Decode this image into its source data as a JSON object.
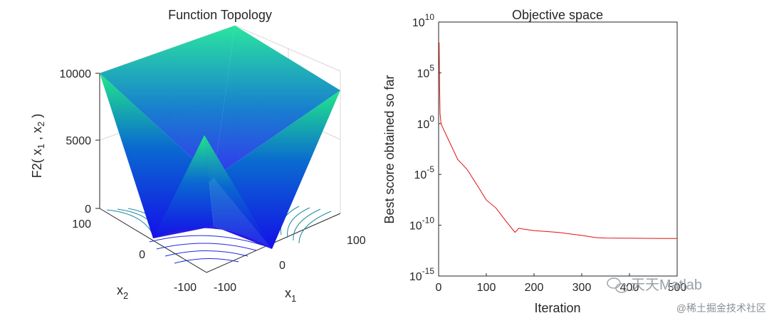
{
  "left_panel": {
    "title": "Function Topology",
    "z_ticks": [
      "10000",
      "5000",
      "0"
    ],
    "x1_ticks": [
      "-100",
      "0",
      "100"
    ],
    "x2_ticks": [
      "100",
      "0",
      "-100"
    ],
    "z_label_prefix": "F2( x",
    "z_label_sub1": "1",
    "z_label_mid": " , x",
    "z_label_sub2": "2",
    "z_label_suffix": " )",
    "x1_label": "x",
    "x1_sub": "1",
    "x2_label": "x",
    "x2_sub": "2",
    "colors": {
      "surface_low": "#1a14e6",
      "surface_mid": "#0a66c8",
      "surface_high": "#1fe08a",
      "contour": "#1a8a9a"
    }
  },
  "watermark": {
    "main": "天天Matlab",
    "sub": "@稀土掘金技术社区"
  },
  "chart_data": [
    {
      "type": "surface",
      "title": "Function Topology",
      "zlabel": "F2( x1 , x2 )",
      "xlabel": "x1",
      "ylabel": "x2",
      "xlim": [
        -100,
        100
      ],
      "ylim": [
        -100,
        100
      ],
      "zlim": [
        0,
        10000
      ],
      "z_max": 10000
    },
    {
      "type": "line",
      "title": "Objective space",
      "xlabel": "Iteration",
      "ylabel": "Best score obtained so far",
      "xlim": [
        0,
        500
      ],
      "ylim": [
        1e-15,
        10000000000.0
      ],
      "y_scale": "log",
      "x_ticks": [
        "0",
        "100",
        "200",
        "300",
        "400",
        "500"
      ],
      "y_ticks": [
        {
          "base": "10",
          "exp": "10"
        },
        {
          "base": "10",
          "exp": "5"
        },
        {
          "base": "10",
          "exp": "0"
        },
        {
          "base": "10",
          "exp": "-5"
        },
        {
          "base": "10",
          "exp": "-10"
        },
        {
          "base": "10",
          "exp": "-15"
        }
      ],
      "line_color": "#e01010",
      "series": [
        {
          "x": [
            1,
            2,
            3,
            5,
            10,
            20,
            40,
            60,
            80,
            100,
            120,
            140,
            160,
            168,
            180,
            200,
            250,
            300,
            330,
            350,
            400,
            450,
            500
          ],
          "y": [
            100000000.0,
            10000.0,
            10.0,
            1.0,
            0.3,
            0.03,
            0.0003,
            3e-05,
            1e-06,
            3e-08,
            5e-09,
            3e-10,
            2e-11,
            5e-11,
            4e-11,
            3e-11,
            2e-11,
            1e-11,
            6e-12,
            5.5e-12,
            5.2e-12,
            5.1e-12,
            5e-12
          ]
        }
      ]
    }
  ]
}
